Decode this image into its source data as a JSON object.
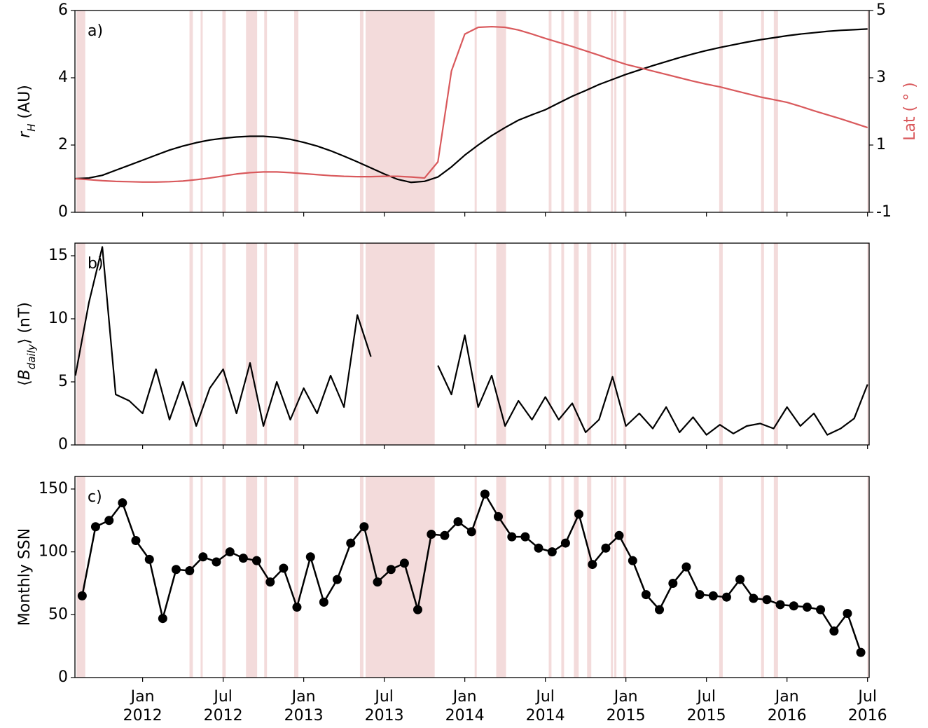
{
  "chart_data": [
    {
      "type": "line",
      "annotation": "a)",
      "ylabel": [
        "r",
        "H",
        " (AU)"
      ],
      "ylabel_format": [
        "italic",
        "subscript",
        "normal"
      ],
      "y2label": "Lat ( ° )",
      "y2label_color": "#d9595c",
      "xlim": [
        2011.58,
        2016.51
      ],
      "xticks": [
        2012,
        2012.5,
        2013,
        2013.5,
        2014,
        2014.5,
        2015,
        2015.5,
        2016,
        2016.5
      ],
      "ylim": [
        0,
        6
      ],
      "yticks": [
        0,
        2,
        4,
        6
      ],
      "y2lim": [
        -1,
        5
      ],
      "y2ticks": [
        -1,
        1,
        3,
        5
      ],
      "shade_color": "#f3dbdb",
      "shaded": [
        [
          2011.59,
          2011.644
        ],
        [
          2012.291,
          2012.312
        ],
        [
          2012.36,
          2012.373
        ],
        [
          2012.495,
          2012.516
        ],
        [
          2012.642,
          2012.711
        ],
        [
          2012.755,
          2012.772
        ],
        [
          2012.941,
          2012.967
        ],
        [
          2013.349,
          2013.371
        ],
        [
          2013.384,
          2013.813
        ],
        [
          2014.061,
          2014.074
        ],
        [
          2014.195,
          2014.256
        ],
        [
          2014.521,
          2014.538
        ],
        [
          2014.599,
          2014.616
        ],
        [
          2014.677,
          2014.707
        ],
        [
          2014.759,
          2014.785
        ],
        [
          2014.907,
          2014.92
        ],
        [
          2014.928,
          2014.941
        ],
        [
          2014.985,
          2015.002
        ],
        [
          2015.579,
          2015.601
        ],
        [
          2015.839,
          2015.857
        ],
        [
          2015.918,
          2015.944
        ],
        [
          2016.499,
          2016.508
        ]
      ],
      "x": [
        2011.583,
        2011.667,
        2011.75,
        2011.833,
        2011.917,
        2012,
        2012.083,
        2012.167,
        2012.25,
        2012.333,
        2012.417,
        2012.5,
        2012.583,
        2012.667,
        2012.75,
        2012.833,
        2012.917,
        2013,
        2013.083,
        2013.167,
        2013.25,
        2013.333,
        2013.417,
        2013.5,
        2013.583,
        2013.667,
        2013.75,
        2013.833,
        2013.917,
        2014,
        2014.083,
        2014.167,
        2014.25,
        2014.333,
        2014.417,
        2014.5,
        2014.583,
        2014.667,
        2014.75,
        2014.833,
        2014.917,
        2015,
        2015.083,
        2015.167,
        2015.25,
        2015.333,
        2015.417,
        2015.5,
        2015.583,
        2015.667,
        2015.75,
        2015.833,
        2015.917,
        2016,
        2016.083,
        2016.167,
        2016.25,
        2016.333,
        2016.417,
        2016.5
      ],
      "series": [
        {
          "color": "#000000",
          "values": [
            1.0,
            1.02,
            1.1,
            1.25,
            1.4,
            1.55,
            1.7,
            1.85,
            1.97,
            2.07,
            2.15,
            2.2,
            2.24,
            2.26,
            2.26,
            2.23,
            2.17,
            2.08,
            1.97,
            1.83,
            1.67,
            1.5,
            1.32,
            1.14,
            0.98,
            0.89,
            0.92,
            1.05,
            1.35,
            1.7,
            2.0,
            2.28,
            2.52,
            2.74,
            2.9,
            3.05,
            3.25,
            3.45,
            3.62,
            3.8,
            3.95,
            4.1,
            4.23,
            4.36,
            4.48,
            4.6,
            4.71,
            4.81,
            4.9,
            4.98,
            5.06,
            5.13,
            5.19,
            5.25,
            5.3,
            5.34,
            5.38,
            5.41,
            5.43,
            5.45
          ]
        },
        {
          "color": "#d9595c",
          "axis": "y2",
          "values": [
            0.0,
            -0.03,
            -0.06,
            -0.08,
            -0.09,
            -0.1,
            -0.1,
            -0.09,
            -0.07,
            -0.03,
            0.02,
            0.08,
            0.14,
            0.18,
            0.2,
            0.2,
            0.18,
            0.15,
            0.12,
            0.09,
            0.07,
            0.06,
            0.06,
            0.07,
            0.07,
            0.05,
            0.02,
            0.5,
            3.2,
            4.3,
            4.5,
            4.52,
            4.5,
            4.42,
            4.3,
            4.17,
            4.05,
            3.93,
            3.8,
            3.67,
            3.53,
            3.4,
            3.3,
            3.2,
            3.1,
            3.0,
            2.9,
            2.81,
            2.73,
            2.63,
            2.53,
            2.43,
            2.35,
            2.27,
            2.15,
            2.02,
            1.9,
            1.78,
            1.65,
            1.52
          ]
        }
      ]
    },
    {
      "type": "line",
      "annotation": "b)",
      "ylabel": [
        "⟨",
        "B",
        "daily",
        "⟩ (nT)"
      ],
      "ylabel_format": [
        "normal",
        "italic",
        "subscript",
        "normal"
      ],
      "xlim": [
        2011.58,
        2016.51
      ],
      "xticks": [
        2012,
        2012.5,
        2013,
        2013.5,
        2014,
        2014.5,
        2015,
        2015.5,
        2016,
        2016.5
      ],
      "ylim": [
        0,
        16
      ],
      "yticks": [
        0,
        5,
        10,
        15
      ],
      "shade_color": "#f3dbdb",
      "shaded": [
        [
          2011.59,
          2011.644
        ],
        [
          2012.291,
          2012.312
        ],
        [
          2012.36,
          2012.373
        ],
        [
          2012.495,
          2012.516
        ],
        [
          2012.642,
          2012.711
        ],
        [
          2012.755,
          2012.772
        ],
        [
          2012.941,
          2012.967
        ],
        [
          2013.349,
          2013.371
        ],
        [
          2013.384,
          2013.813
        ],
        [
          2014.061,
          2014.074
        ],
        [
          2014.195,
          2014.256
        ],
        [
          2014.521,
          2014.538
        ],
        [
          2014.599,
          2014.616
        ],
        [
          2014.677,
          2014.707
        ],
        [
          2014.759,
          2014.785
        ],
        [
          2014.907,
          2014.92
        ],
        [
          2014.928,
          2014.941
        ],
        [
          2014.985,
          2015.002
        ],
        [
          2015.579,
          2015.601
        ],
        [
          2015.839,
          2015.857
        ],
        [
          2015.918,
          2015.944
        ],
        [
          2016.499,
          2016.508
        ]
      ],
      "x": [
        2011.583,
        2011.667,
        2011.75,
        2011.833,
        2011.917,
        2012,
        2012.083,
        2012.167,
        2012.25,
        2012.333,
        2012.417,
        2012.5,
        2012.583,
        2012.667,
        2012.75,
        2012.833,
        2012.917,
        2013,
        2013.083,
        2013.167,
        2013.25,
        2013.333,
        2013.417,
        2013.5,
        2013.583,
        2013.667,
        2013.75,
        2013.833,
        2013.917,
        2014,
        2014.083,
        2014.167,
        2014.25,
        2014.333,
        2014.417,
        2014.5,
        2014.583,
        2014.667,
        2014.75,
        2014.833,
        2014.917,
        2015,
        2015.083,
        2015.167,
        2015.25,
        2015.333,
        2015.417,
        2015.5,
        2015.583,
        2015.667,
        2015.75,
        2015.833,
        2015.917,
        2016,
        2016.083,
        2016.167,
        2016.25,
        2016.333,
        2016.417,
        2016.5
      ],
      "series": [
        {
          "color": "#000000",
          "values": [
            5.5,
            11.3,
            15.7,
            4,
            3.5,
            2.5,
            6,
            2,
            5,
            1.5,
            4.5,
            6,
            2.5,
            6.5,
            1.5,
            5,
            2,
            4.5,
            2.5,
            5.5,
            3,
            10.3,
            7,
            null,
            null,
            null,
            null,
            6.3,
            4,
            8.7,
            3,
            5.5,
            1.5,
            3.5,
            2,
            3.8,
            2,
            3.3,
            1,
            2,
            5.4,
            1.5,
            2.5,
            1.3,
            3,
            1,
            2.2,
            0.8,
            1.6,
            0.9,
            1.5,
            1.7,
            1.3,
            3,
            1.5,
            2.5,
            0.8,
            1.3,
            2.1,
            4.8
          ]
        }
      ]
    },
    {
      "type": "line",
      "markers": true,
      "annotation": "c)",
      "ylabel": "Monthly SSN",
      "xlim": [
        2011.58,
        2016.51
      ],
      "xticks": [
        {
          "value": 2012,
          "label": [
            "Jan",
            "2012"
          ]
        },
        {
          "value": 2012.5,
          "label": [
            "Jul",
            "2012"
          ]
        },
        {
          "value": 2013,
          "label": [
            "Jan",
            "2013"
          ]
        },
        {
          "value": 2013.5,
          "label": [
            "Jul",
            "2013"
          ]
        },
        {
          "value": 2014,
          "label": [
            "Jan",
            "2014"
          ]
        },
        {
          "value": 2014.5,
          "label": [
            "Jul",
            "2014"
          ]
        },
        {
          "value": 2015,
          "label": [
            "Jan",
            "2015"
          ]
        },
        {
          "value": 2015.5,
          "label": [
            "Jul",
            "2015"
          ]
        },
        {
          "value": 2016,
          "label": [
            "Jan",
            "2016"
          ]
        },
        {
          "value": 2016.5,
          "label": [
            "Jul",
            "2016"
          ]
        }
      ],
      "ylim": [
        0,
        160
      ],
      "yticks": [
        0,
        50,
        100,
        150
      ],
      "shade_color": "#f3dbdb",
      "shaded": [
        [
          2011.59,
          2011.644
        ],
        [
          2012.291,
          2012.312
        ],
        [
          2012.36,
          2012.373
        ],
        [
          2012.495,
          2012.516
        ],
        [
          2012.642,
          2012.711
        ],
        [
          2012.755,
          2012.772
        ],
        [
          2012.941,
          2012.967
        ],
        [
          2013.349,
          2013.371
        ],
        [
          2013.384,
          2013.813
        ],
        [
          2014.061,
          2014.074
        ],
        [
          2014.195,
          2014.256
        ],
        [
          2014.521,
          2014.538
        ],
        [
          2014.599,
          2014.616
        ],
        [
          2014.677,
          2014.707
        ],
        [
          2014.759,
          2014.785
        ],
        [
          2014.907,
          2014.92
        ],
        [
          2014.928,
          2014.941
        ],
        [
          2014.985,
          2015.002
        ],
        [
          2015.579,
          2015.601
        ],
        [
          2015.839,
          2015.857
        ],
        [
          2015.918,
          2015.944
        ],
        [
          2016.499,
          2016.508
        ]
      ],
      "x": [
        2011.625,
        2011.708,
        2011.792,
        2011.875,
        2011.958,
        2012.042,
        2012.125,
        2012.208,
        2012.292,
        2012.375,
        2012.458,
        2012.542,
        2012.625,
        2012.708,
        2012.792,
        2012.875,
        2012.958,
        2013.042,
        2013.125,
        2013.208,
        2013.292,
        2013.375,
        2013.458,
        2013.542,
        2013.625,
        2013.708,
        2013.792,
        2013.875,
        2013.958,
        2014.042,
        2014.125,
        2014.208,
        2014.292,
        2014.375,
        2014.458,
        2014.542,
        2014.625,
        2014.708,
        2014.792,
        2014.875,
        2014.958,
        2015.042,
        2015.125,
        2015.208,
        2015.292,
        2015.375,
        2015.458,
        2015.542,
        2015.625,
        2015.708,
        2015.792,
        2015.875,
        2015.958,
        2016.042,
        2016.125,
        2016.208,
        2016.292,
        2016.375,
        2016.458
      ],
      "series": [
        {
          "color": "#000000",
          "values": [
            65,
            120,
            125,
            139,
            109,
            94,
            47,
            86,
            85,
            96,
            92,
            100,
            95,
            93,
            76,
            87,
            56,
            96,
            60,
            78,
            107,
            120,
            76,
            86,
            91,
            54,
            114,
            113,
            124,
            116,
            146,
            128,
            112,
            112,
            103,
            100,
            107,
            130,
            90,
            103,
            113,
            93,
            66,
            54,
            75,
            88,
            66,
            65,
            64,
            78,
            63,
            62,
            58,
            57,
            56,
            54,
            37,
            51,
            20
          ]
        }
      ]
    }
  ]
}
